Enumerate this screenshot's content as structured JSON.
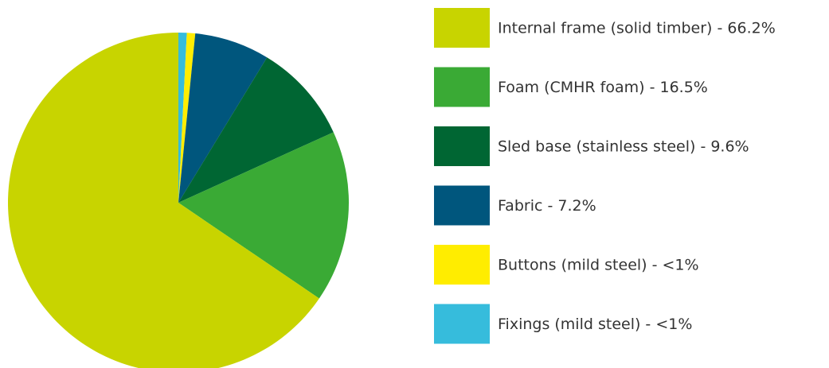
{
  "chart_data": {
    "type": "pie",
    "categories": [
      "Internal frame (solid timber) - 66.2%",
      "Foam (CMHR foam) - 16.5%",
      "Sled base (stainless steel) - 9.6%",
      "Fabric - 7.2%",
      "Buttons (mild steel) - <1%",
      "Fixings (mild steel) - <1%"
    ],
    "values": [
      66.2,
      16.5,
      9.6,
      7.2,
      0.8,
      0.8
    ],
    "colors": [
      "#c8d400",
      "#3aaa35",
      "#006633",
      "#00567d",
      "#ffed00",
      "#36bcdc"
    ]
  }
}
